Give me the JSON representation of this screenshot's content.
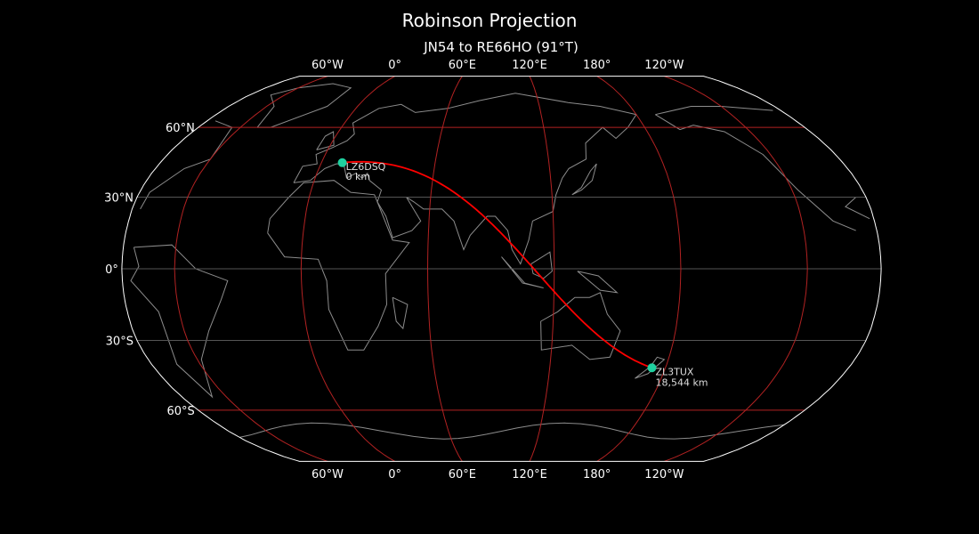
{
  "title": "Robinson Projection",
  "subtitle": "JN54 to RE66HO (91°T)",
  "map": {
    "projection": "robinson",
    "central_longitude": 95,
    "background": "#000000",
    "coastline_color": "#8c8c8c",
    "outline_color": "#ffffff",
    "graticule": {
      "meridian_color": "#b22222",
      "parallel_minor_color": "#555555",
      "parallel_major_color": "#b22222",
      "meridians": [
        -60,
        0,
        60,
        120,
        180,
        -120
      ],
      "meridian_labels": [
        "60°W",
        "0°",
        "60°E",
        "120°E",
        "180°",
        "120°W"
      ],
      "parallels": [
        60,
        30,
        0,
        -30,
        -60
      ],
      "parallel_labels": [
        "60°N",
        "30°N",
        "0°",
        "30°S",
        "60°S"
      ]
    }
  },
  "path": {
    "color": "#ff0000",
    "from": {
      "call": "LZ6DSQ",
      "distance": "0 km",
      "lon": 11,
      "lat": 44.5
    },
    "to": {
      "call": "ZL3TUX",
      "distance": "18,544 km",
      "lon": 173,
      "lat": -41.5
    },
    "marker_color": "#1fd1a0"
  }
}
